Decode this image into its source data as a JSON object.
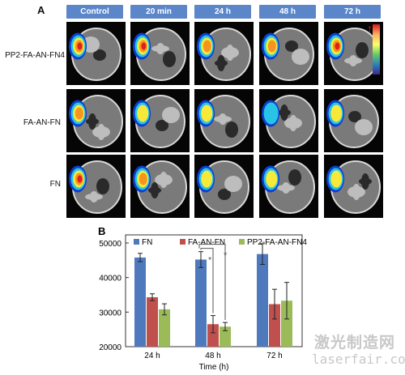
{
  "panel_a": {
    "label": "A",
    "columns": [
      "Control",
      "20 min",
      "24 h",
      "48 h",
      "72 h"
    ],
    "rows": [
      "PP2-FA-AN-FN4",
      "FA-AN-FN",
      "FN"
    ],
    "heat_intensity": [
      [
        0.9,
        0.95,
        0.8,
        0.75,
        0.9
      ],
      [
        0.85,
        0.6,
        0.45,
        0.3,
        0.4
      ],
      [
        0.9,
        0.7,
        0.6,
        0.45,
        0.6
      ]
    ],
    "colorbar_colors": [
      "#d7191c",
      "#fdae61",
      "#ffff66",
      "#66cc66",
      "#2b83ba",
      "#3a2a8a"
    ]
  },
  "chart_data": {
    "label": "B",
    "type": "bar",
    "categories": [
      "24 h",
      "48 h",
      "72 h"
    ],
    "xlabel": "Time (h)",
    "ylabel": "",
    "ylim": [
      20000,
      50000
    ],
    "yticks": [
      20000,
      30000,
      40000,
      50000
    ],
    "series": [
      {
        "name": "FN",
        "color": "#4f79bd",
        "values": [
          45800,
          45200,
          46800
        ],
        "errors": [
          1200,
          2300,
          3000
        ]
      },
      {
        "name": "FA-AN-FN",
        "color": "#c0504d",
        "values": [
          34300,
          26500,
          32300
        ],
        "errors": [
          1000,
          2500,
          4300
        ]
      },
      {
        "name": "PP2-FA-AN-FN4",
        "color": "#9bbb59",
        "values": [
          30800,
          25800,
          33300
        ],
        "errors": [
          1600,
          1200,
          5300
        ]
      }
    ],
    "annotations": [
      "*",
      "*"
    ],
    "legend_position": "top",
    "grid": false
  },
  "watermark": {
    "line1": "激光制造网",
    "line2": "laserfair.com"
  }
}
